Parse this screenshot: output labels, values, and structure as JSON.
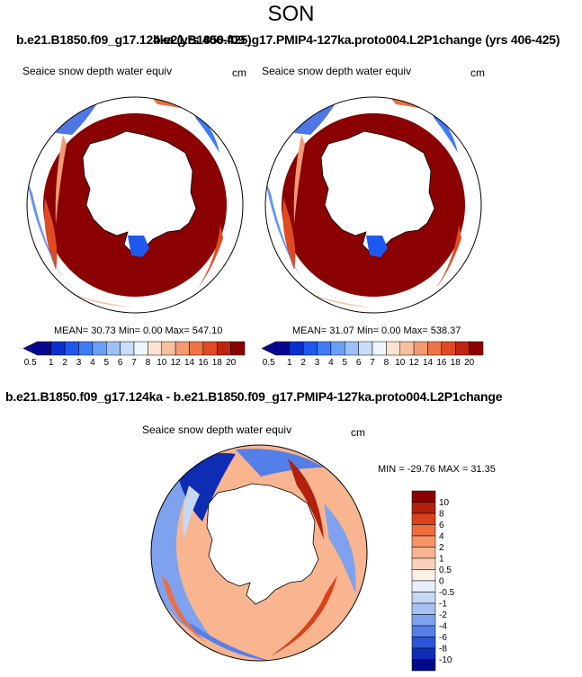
{
  "season": "SON",
  "titles": {
    "left_run": "b.e21.B1850.f09_g17.124ka (yrs 406-425)",
    "right_run": "b.e21.B1850.f09_g17.PMIP4-127ka.proto004.L2P1change (yrs 406-425)",
    "difference": "b.e21.B1850.f09_g17.124ka - b.e21.B1850.f09_g17.PMIP4-127ka.proto004.L2P1change"
  },
  "colors": {
    "outline": "#000000",
    "land": "#ffffff",
    "high_value": "#8b0000"
  },
  "chart_data": [
    {
      "type": "heatmap",
      "projection": "south-polar-stereographic",
      "variable": "Seaice snow depth water equiv",
      "units": "cm",
      "stats_line": "MEAN=  30.73  Min=    0.00  Max= 547.10",
      "mean": 30.73,
      "min": 0.0,
      "max": 547.1,
      "colorbar": {
        "orientation": "horizontal",
        "levels": [
          "0.5",
          "1",
          "2",
          "3",
          "4",
          "5",
          "6",
          "7",
          "8",
          "10",
          "12",
          "14",
          "16",
          "18",
          "20"
        ],
        "colors": [
          "#08068c",
          "#0c2fd0",
          "#1e58ee",
          "#3e7cf5",
          "#6a9ff7",
          "#9cc1f7",
          "#c9ddf8",
          "#eef5fb",
          "#fbe3cf",
          "#f6c09e",
          "#f29a72",
          "#ee7447",
          "#e04b22",
          "#bd250f",
          "#8b0000"
        ]
      }
    },
    {
      "type": "heatmap",
      "projection": "south-polar-stereographic",
      "variable": "Seaice snow depth water equiv",
      "units": "cm",
      "stats_line": "MEAN=  31.07  Min=    0.00  Max= 538.37",
      "mean": 31.07,
      "min": 0.0,
      "max": 538.37,
      "colorbar": {
        "orientation": "horizontal",
        "levels": [
          "0.5",
          "1",
          "2",
          "3",
          "4",
          "5",
          "6",
          "7",
          "8",
          "10",
          "12",
          "14",
          "16",
          "18",
          "20"
        ],
        "colors": [
          "#08068c",
          "#0c2fd0",
          "#1e58ee",
          "#3e7cf5",
          "#6a9ff7",
          "#9cc1f7",
          "#c9ddf8",
          "#eef5fb",
          "#fbe3cf",
          "#f6c09e",
          "#f29a72",
          "#ee7447",
          "#e04b22",
          "#bd250f",
          "#8b0000"
        ]
      }
    },
    {
      "type": "heatmap",
      "projection": "south-polar-stereographic",
      "variable": "Seaice snow depth water equiv",
      "units": "cm",
      "stats_line": "MIN = -29.76 MAX =  31.35",
      "min": -29.76,
      "max": 31.35,
      "colorbar": {
        "orientation": "vertical",
        "levels": [
          "10",
          "8",
          "6",
          "4",
          "2",
          "1",
          "0.5",
          "0",
          "-0.5",
          "-1",
          "-2",
          "-4",
          "-6",
          "-8",
          "-10"
        ],
        "colors": [
          "#8b0000",
          "#b3200c",
          "#d8431c",
          "#ee6d3e",
          "#f69468",
          "#f8b590",
          "#fad2b9",
          "#fdf0e6",
          "#e8eef9",
          "#c7d8f5",
          "#a6c1f1",
          "#7ea2ed",
          "#557fe8",
          "#2b55d6",
          "#0e2cb4",
          "#000c85"
        ]
      }
    }
  ]
}
